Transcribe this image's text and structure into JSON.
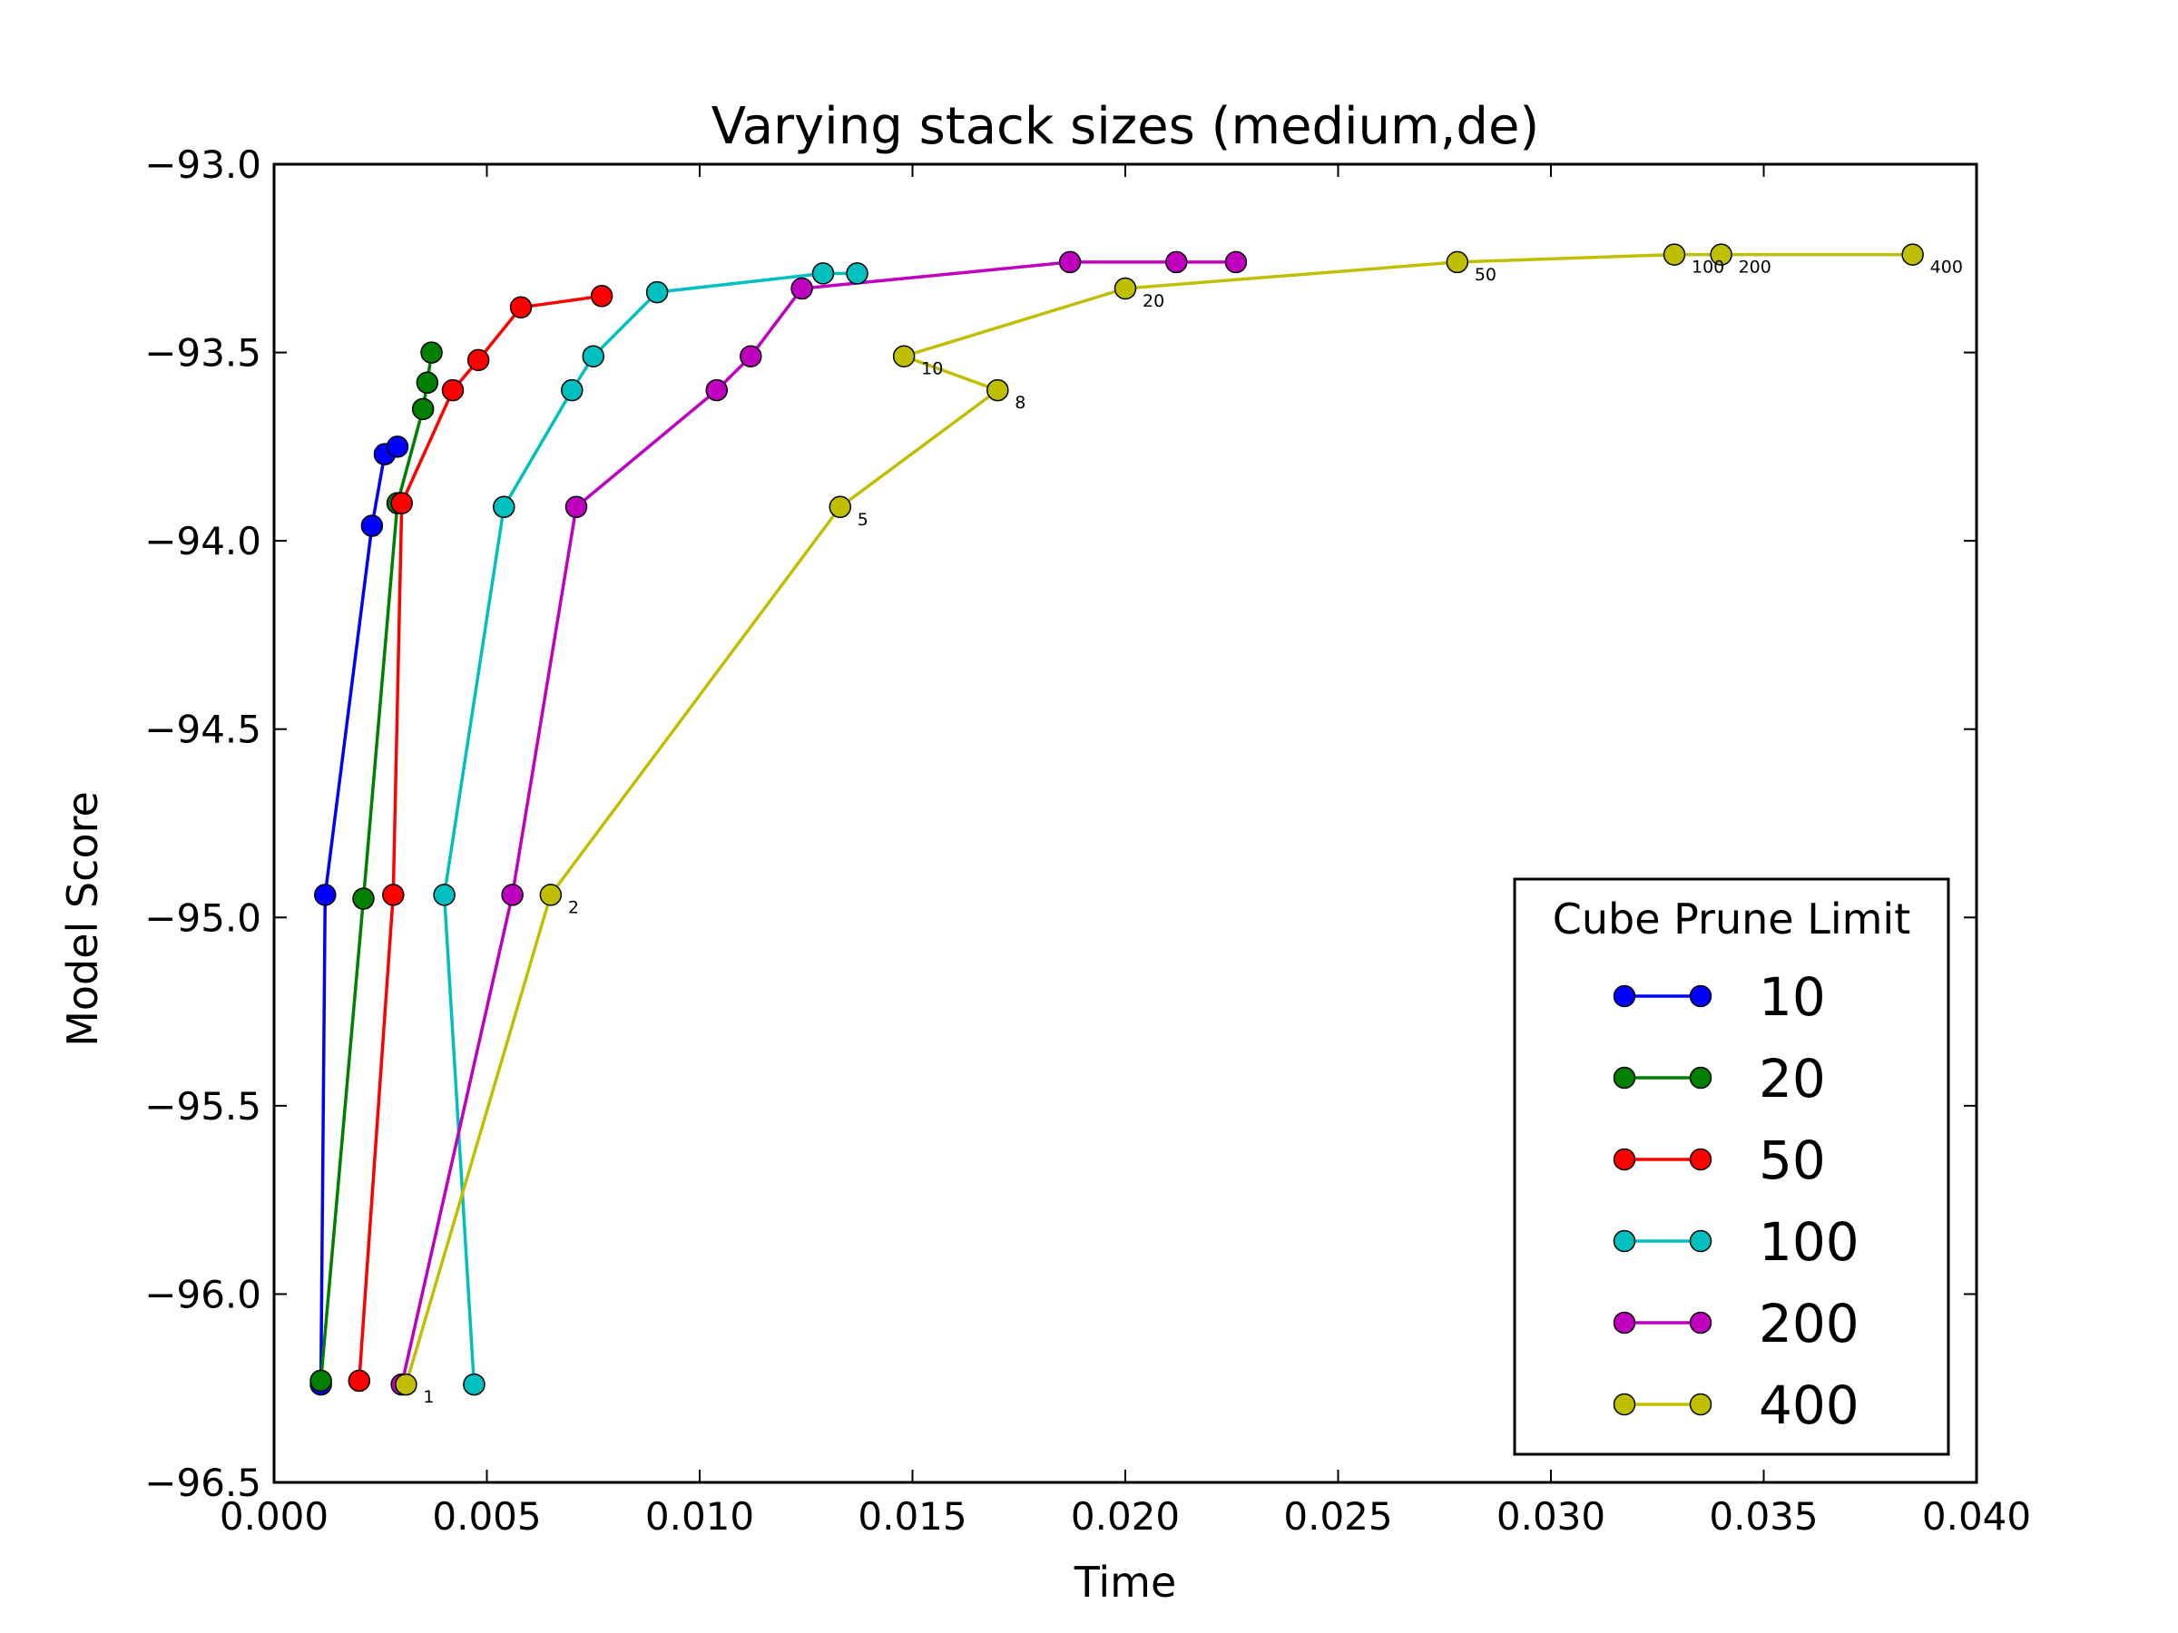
{
  "chart_data": {
    "type": "line",
    "title": "Varying stack sizes (medium,de)",
    "xlabel": "Time",
    "ylabel": "Model Score",
    "xlim": [
      0.0,
      0.04
    ],
    "ylim": [
      -96.5,
      -93.0
    ],
    "xticks": [
      "0.000",
      "0.005",
      "0.010",
      "0.015",
      "0.020",
      "0.025",
      "0.030",
      "0.035",
      "0.040"
    ],
    "yticks": [
      "−93.0",
      "−93.5",
      "−94.0",
      "−94.5",
      "−95.0",
      "−95.5",
      "−96.0",
      "−96.5"
    ],
    "xtick_values": [
      0.0,
      0.005,
      0.01,
      0.015,
      0.02,
      0.025,
      0.03,
      0.035,
      0.04
    ],
    "ytick_values": [
      -93.0,
      -93.5,
      -94.0,
      -94.5,
      -95.0,
      -95.5,
      -96.0,
      -96.5
    ],
    "legend": {
      "title": "Cube Prune Limit",
      "placement": "lower-right"
    },
    "grid": false,
    "series": [
      {
        "name": "10",
        "color": "#0000ff",
        "x": [
          0.0011,
          0.0012,
          0.0023,
          0.0026,
          0.0029
        ],
        "y": [
          -96.24,
          -94.94,
          -93.96,
          -93.77,
          -93.75
        ]
      },
      {
        "name": "20",
        "color": "#007f00",
        "x": [
          0.0011,
          0.0021,
          0.0029,
          0.0035,
          0.0036,
          0.0037
        ],
        "y": [
          -96.23,
          -94.95,
          -93.9,
          -93.65,
          -93.58,
          -93.5
        ]
      },
      {
        "name": "50",
        "color": "#ff0000",
        "x": [
          0.002,
          0.0028,
          0.003,
          0.0042,
          0.0048,
          0.0058,
          0.0077
        ],
        "y": [
          -96.23,
          -94.94,
          -93.9,
          -93.6,
          -93.52,
          -93.38,
          -93.35
        ]
      },
      {
        "name": "100",
        "color": "#00bfbf",
        "x": [
          0.0047,
          0.004,
          0.0054,
          0.007,
          0.0075,
          0.009,
          0.0129,
          0.0137
        ],
        "y": [
          -96.24,
          -94.94,
          -93.91,
          -93.6,
          -93.51,
          -93.34,
          -93.29,
          -93.29
        ]
      },
      {
        "name": "200",
        "color": "#bf00bf",
        "x": [
          0.003,
          0.0056,
          0.0071,
          0.0104,
          0.0112,
          0.0124,
          0.0187,
          0.0212,
          0.0226
        ],
        "y": [
          -96.24,
          -94.94,
          -93.91,
          -93.6,
          -93.51,
          -93.33,
          -93.26,
          -93.26,
          -93.26
        ]
      },
      {
        "name": "400",
        "color": "#bfbf00",
        "x": [
          0.0031,
          0.0065,
          0.0133,
          0.017,
          0.0148,
          0.02,
          0.0278,
          0.0329,
          0.034,
          0.0385
        ],
        "y": [
          -96.24,
          -94.94,
          -93.91,
          -93.6,
          -93.51,
          -93.33,
          -93.26,
          -93.24,
          -93.24,
          -93.24
        ],
        "point_labels": [
          "1",
          "2",
          "5",
          "8",
          "10",
          "20",
          "50",
          "100",
          "200",
          "400"
        ]
      }
    ]
  }
}
